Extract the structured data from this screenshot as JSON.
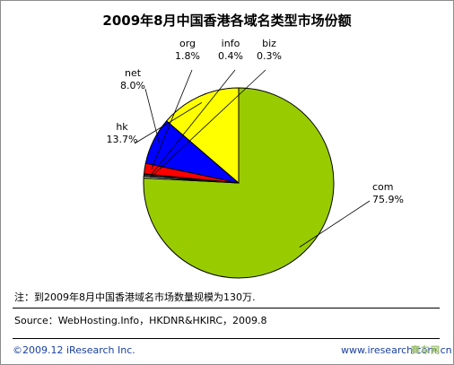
{
  "chart_data": {
    "type": "pie",
    "title": "2009年8月中国香港各域名类型市场份额",
    "slices": [
      {
        "name": "com",
        "value": 75.9,
        "label": "75.9%",
        "color": "#99cc00"
      },
      {
        "name": "biz",
        "value": 0.3,
        "label": "0.3%",
        "color": "#ffffff"
      },
      {
        "name": "info",
        "value": 0.4,
        "label": "0.4%",
        "color": "#333333"
      },
      {
        "name": "org",
        "value": 1.8,
        "label": "1.8%",
        "color": "#ff0000"
      },
      {
        "name": "net",
        "value": 8.0,
        "label": "8.0%",
        "color": "#0000ff"
      },
      {
        "name": "hk",
        "value": 13.7,
        "label": "13.7%",
        "color": "#ffff00"
      }
    ]
  },
  "note": "注：到2009年8月中国香港域名市场数量规模为130万.",
  "source": "Source：WebHosting.Info，HKDNR&HKIRC，2009.8",
  "copyright": "©2009.12 iResearch Inc.",
  "website": "www.iresearch.com.cn",
  "watermark": "赛车网"
}
